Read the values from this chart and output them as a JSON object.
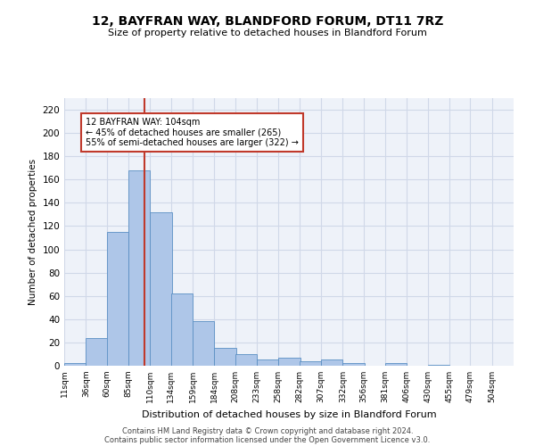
{
  "title": "12, BAYFRAN WAY, BLANDFORD FORUM, DT11 7RZ",
  "subtitle": "Size of property relative to detached houses in Blandford Forum",
  "xlabel": "Distribution of detached houses by size in Blandford Forum",
  "ylabel": "Number of detached properties",
  "bin_labels": [
    "11sqm",
    "36sqm",
    "60sqm",
    "85sqm",
    "110sqm",
    "134sqm",
    "159sqm",
    "184sqm",
    "208sqm",
    "233sqm",
    "258sqm",
    "282sqm",
    "307sqm",
    "332sqm",
    "356sqm",
    "381sqm",
    "406sqm",
    "430sqm",
    "455sqm",
    "479sqm",
    "504sqm"
  ],
  "bin_edges": [
    11,
    36,
    60,
    85,
    110,
    134,
    159,
    184,
    208,
    233,
    258,
    282,
    307,
    332,
    356,
    381,
    406,
    430,
    455,
    479,
    504
  ],
  "bar_heights": [
    2,
    24,
    115,
    168,
    132,
    62,
    38,
    15,
    10,
    5,
    7,
    4,
    5,
    2,
    0,
    2,
    0,
    1,
    0,
    0,
    0
  ],
  "bar_color": "#aec6e8",
  "bar_edge_color": "#5a8fc3",
  "vline_x": 104,
  "vline_color": "#c0392b",
  "ylim": [
    0,
    230
  ],
  "yticks": [
    0,
    20,
    40,
    60,
    80,
    100,
    120,
    140,
    160,
    180,
    200,
    220
  ],
  "annotation_text": "12 BAYFRAN WAY: 104sqm\n← 45% of detached houses are smaller (265)\n55% of semi-detached houses are larger (322) →",
  "annotation_box_color": "#ffffff",
  "annotation_box_edge": "#c0392b",
  "footer1": "Contains HM Land Registry data © Crown copyright and database right 2024.",
  "footer2": "Contains public sector information licensed under the Open Government Licence v3.0.",
  "grid_color": "#d0d8e8",
  "background_color": "#eef2f9"
}
